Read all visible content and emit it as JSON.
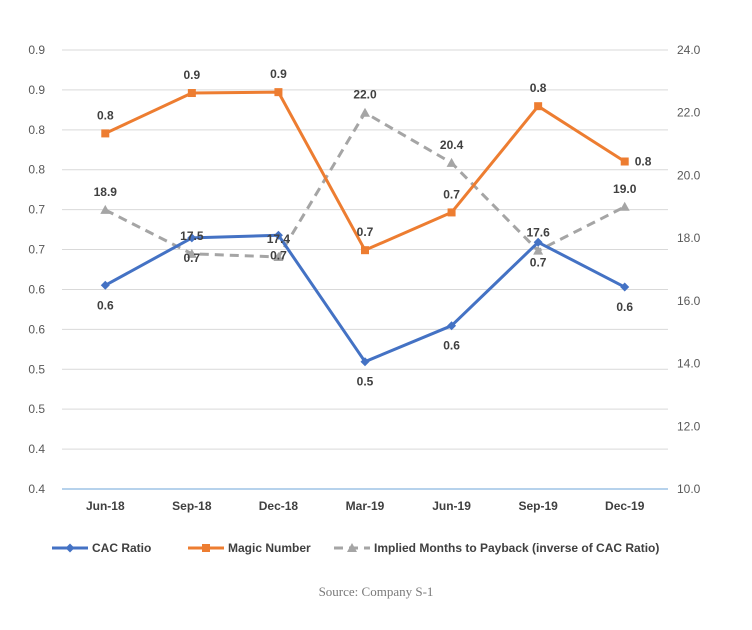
{
  "chart_data": {
    "type": "line",
    "categories": [
      "Jun-18",
      "Sep-18",
      "Dec-18",
      "Mar-19",
      "Jun-19",
      "Sep-19",
      "Dec-19"
    ],
    "y_left": {
      "ticks": [
        "0.4",
        "0.4",
        "0.5",
        "0.5",
        "0.6",
        "0.6",
        "0.7",
        "0.7",
        "0.8",
        "0.8",
        "0.9",
        "0.9"
      ],
      "ylim": [
        0.4,
        0.9
      ]
    },
    "y_right": {
      "ticks": [
        "10.0",
        "12.0",
        "14.0",
        "16.0",
        "18.0",
        "20.0",
        "22.0",
        "24.0"
      ],
      "ylim": [
        10,
        24
      ]
    },
    "series": [
      {
        "name": "CAC Ratio",
        "axis": "left",
        "color": "#4472C4",
        "marker": "diamond",
        "dash": false,
        "values": [
          0.632,
          0.686,
          0.689,
          0.545,
          0.586,
          0.681,
          0.63
        ],
        "labels": [
          "0.6",
          "0.7",
          "0.7",
          "0.5",
          "0.6",
          "0.7",
          "0.6"
        ],
        "label_pos": [
          "below",
          "below",
          "below",
          "below",
          "below",
          "below",
          "below"
        ]
      },
      {
        "name": "Magic Number",
        "axis": "left",
        "color": "#ED7D31",
        "marker": "square",
        "dash": false,
        "values": [
          0.805,
          0.851,
          0.852,
          0.672,
          0.715,
          0.836,
          0.773
        ],
        "labels": [
          "0.8",
          "0.9",
          "0.9",
          "0.7",
          "0.7",
          "0.8",
          "0.8"
        ],
        "label_pos": [
          "above",
          "above",
          "above",
          "above",
          "above",
          "above",
          "right"
        ]
      },
      {
        "name": "Implied Months to Payback (inverse of CAC Ratio)",
        "axis": "right",
        "color": "#A5A5A5",
        "marker": "triangle",
        "dash": true,
        "values": [
          18.9,
          17.5,
          17.4,
          22.0,
          20.4,
          17.6,
          19.0
        ],
        "labels": [
          "18.9",
          "17.5",
          "17.4",
          "22.0",
          "20.4",
          "17.6",
          "19.0"
        ],
        "label_pos": [
          "above",
          "above",
          "above",
          "above",
          "above",
          "above",
          "above"
        ]
      }
    ],
    "legend_position": "bottom",
    "source": "Source: Company S-1"
  }
}
